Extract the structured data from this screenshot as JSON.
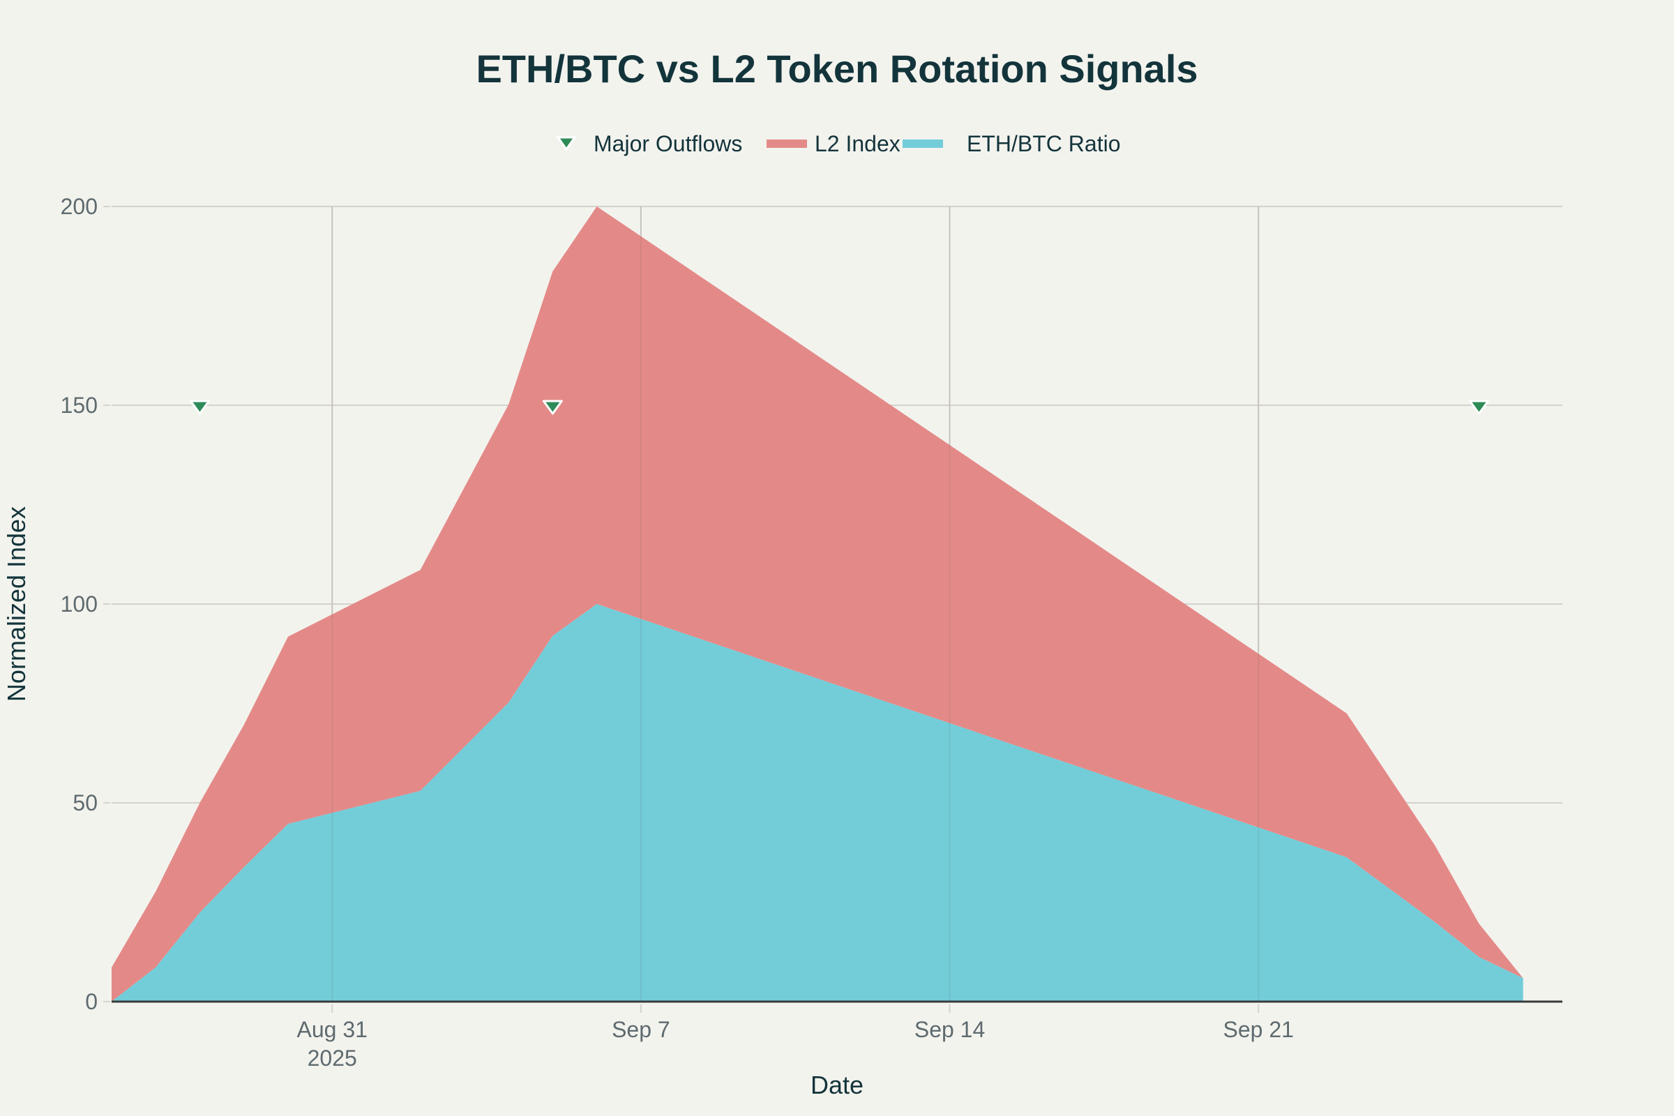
{
  "chart_data": {
    "type": "area",
    "stacked": true,
    "title": "ETH/BTC vs L2 Token Rotation Signals",
    "xlabel": "Date",
    "ylabel": "Normalized Index",
    "ylim": [
      0,
      200
    ],
    "yticks": [
      0,
      50,
      100,
      150,
      200
    ],
    "xlim": [
      "2025-08-26",
      "2025-09-29"
    ],
    "xticks": [
      {
        "date": "2025-08-31",
        "label": "Aug 31",
        "sublabel": "2025"
      },
      {
        "date": "2025-09-07",
        "label": "Sep 7"
      },
      {
        "date": "2025-09-14",
        "label": "Sep 14"
      },
      {
        "date": "2025-09-21",
        "label": "Sep 21"
      }
    ],
    "grid": true,
    "legend_position": "top-center",
    "x": [
      "2025-08-26",
      "2025-08-27",
      "2025-08-28",
      "2025-08-29",
      "2025-08-30",
      "2025-09-02",
      "2025-09-04",
      "2025-09-05",
      "2025-09-06",
      "2025-09-23",
      "2025-09-25",
      "2025-09-26",
      "2025-09-27"
    ],
    "series": [
      {
        "name": "ETH/BTC Ratio",
        "color": "#72cdd9",
        "values": [
          0,
          8.6,
          22.4,
          33.8,
          44.7,
          53,
          75.2,
          92,
          100,
          36.3,
          20,
          11.2,
          5.9
        ]
      },
      {
        "name": "L2 Index",
        "color": "#e38a88",
        "values": [
          8.6,
          19.1,
          27.6,
          35.8,
          47.1,
          55.6,
          75,
          91.7,
          100,
          36.2,
          19.3,
          8.4,
          0
        ]
      }
    ],
    "markers": {
      "name": "Major Outflows",
      "color": "#2e8b57",
      "symbol": "triangle-down",
      "points": [
        {
          "date": "2025-08-28",
          "y": 150
        },
        {
          "date": "2025-09-05",
          "y": 150
        },
        {
          "date": "2025-09-26",
          "y": 150
        }
      ]
    },
    "legend": [
      "Major Outflows",
      "L2 Index",
      "ETH/BTC Ratio"
    ]
  }
}
